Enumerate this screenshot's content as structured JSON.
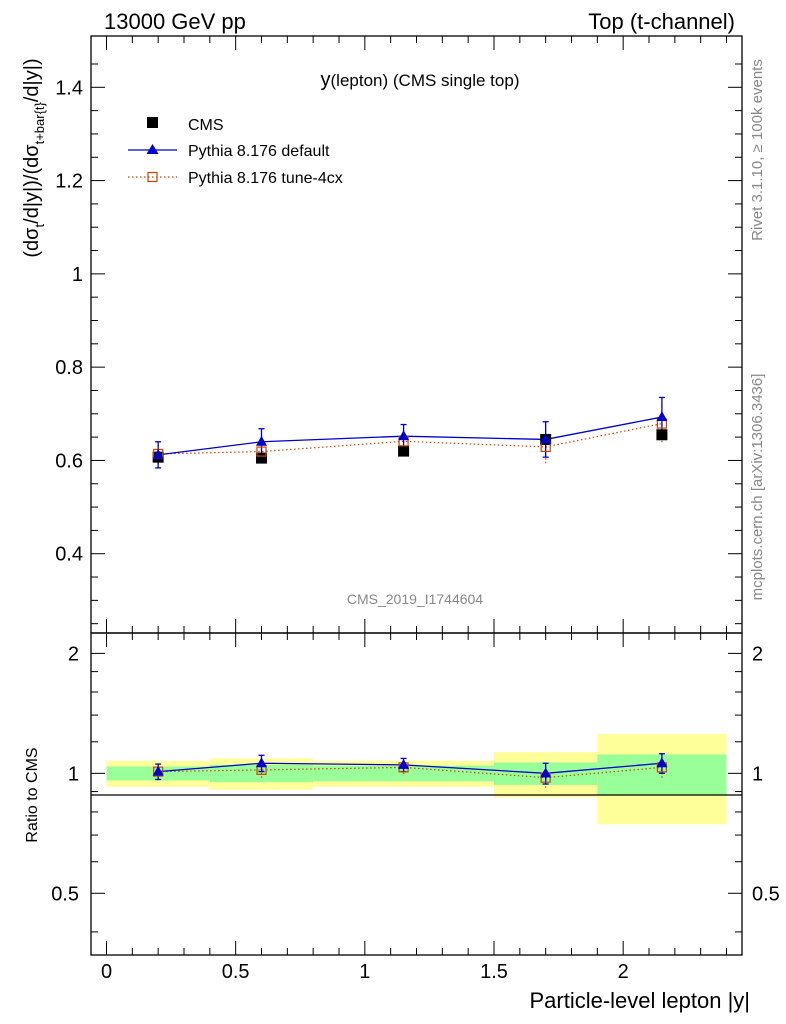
{
  "header": {
    "left": "13000 GeV pp",
    "right": "Top (t-channel)"
  },
  "side_text": {
    "rivet": "Rivet 3.1.10, ≥ 100k events",
    "mcplots": "mcplots.cern.ch [arXiv:1306.3436]"
  },
  "chart_data": [
    {
      "type": "scatter",
      "panel": "main",
      "title": "y(lepton) (CMS single top)",
      "title_main": "y",
      "title_sub": "(lepton) (CMS single top)",
      "ylabel": "(dσt/d|y|)/(dσt+bar{t}/d|y|)",
      "ylabel_parts": {
        "a": "(dσ",
        "a_sub": "t",
        "b": "/d|y|)/(dσ",
        "b_sub": "t+bar{t}",
        "c": "/d|y|)"
      },
      "watermark": "CMS_2019_I1744604",
      "xlim": [
        -0.06,
        2.46
      ],
      "ylim": [
        0.23,
        1.51
      ],
      "yticks": [
        0.4,
        0.6,
        0.8,
        1.0,
        1.2,
        1.4
      ],
      "ytick_labels": [
        "0.4",
        "0.6",
        "0.8",
        "1",
        "1.2",
        "1.4"
      ],
      "legend_position": "top-left",
      "series": [
        {
          "name": "CMS",
          "style": "marker-square-black",
          "color": "#000000",
          "x": [
            0.2,
            0.6,
            1.15,
            1.7,
            2.15
          ],
          "y": [
            0.607,
            0.605,
            0.62,
            0.645,
            0.655
          ],
          "yerr": [
            0.012,
            0.01,
            0.009,
            0.01,
            0.01
          ]
        },
        {
          "name": "Pythia 8.176 default",
          "style": "line-triangle-blue",
          "color": "#0000cc",
          "x": [
            0.2,
            0.6,
            1.15,
            1.7,
            2.15
          ],
          "y": [
            0.612,
            0.64,
            0.652,
            0.645,
            0.693
          ],
          "yerr": [
            0.028,
            0.028,
            0.025,
            0.038,
            0.042
          ]
        },
        {
          "name": "Pythia 8.176 tune-4cx",
          "style": "dotted-opensquare-orange",
          "color": "#cc4400",
          "x": [
            0.2,
            0.6,
            1.15,
            1.7,
            2.15
          ],
          "y": [
            0.614,
            0.619,
            0.641,
            0.629,
            0.679
          ],
          "yerr": [
            0.022,
            0.025,
            0.025,
            0.035,
            0.04
          ]
        }
      ]
    },
    {
      "type": "scatter",
      "panel": "ratio",
      "ylabel": "Ratio to CMS",
      "xlabel": "Particle-level lepton |y|",
      "xlim": [
        -0.06,
        2.46
      ],
      "ylim": [
        0.35,
        2.25
      ],
      "xticks": [
        0,
        0.5,
        1,
        1.5,
        2
      ],
      "xtick_labels": [
        "0",
        "0.5",
        "1",
        "1.5",
        "2"
      ],
      "yticks": [
        0.5,
        1,
        2
      ],
      "ytick_labels": [
        "0.5",
        "1",
        "2"
      ],
      "bands": {
        "bin_edges": [
          0.0,
          0.4,
          0.8,
          1.5,
          1.9,
          2.4
        ],
        "green_low": [
          0.96,
          0.95,
          0.955,
          0.935,
          0.885
        ],
        "green_high": [
          1.04,
          1.05,
          1.045,
          1.065,
          1.115
        ],
        "yellow_low": [
          0.925,
          0.91,
          0.925,
          0.87,
          0.745
        ],
        "yellow_high": [
          1.075,
          1.09,
          1.075,
          1.13,
          1.255
        ],
        "green_color": "#99ff99",
        "yellow_color": "#ffff99"
      },
      "series": [
        {
          "name": "Pythia 8.176 default",
          "x": [
            0.2,
            0.6,
            1.15,
            1.7,
            2.15
          ],
          "y": [
            1.01,
            1.06,
            1.05,
            1.0,
            1.06
          ],
          "yerr": [
            0.045,
            0.05,
            0.04,
            0.06,
            0.06
          ]
        },
        {
          "name": "Pythia 8.176 tune-4cx",
          "x": [
            0.2,
            0.6,
            1.15,
            1.7,
            2.15
          ],
          "y": [
            1.01,
            1.02,
            1.035,
            0.975,
            1.035
          ],
          "yerr": [
            0.04,
            0.045,
            0.04,
            0.055,
            0.06
          ]
        }
      ]
    }
  ]
}
